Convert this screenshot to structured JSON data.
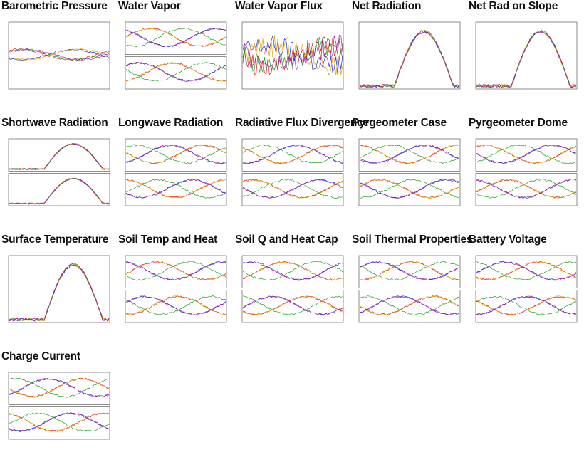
{
  "page": {
    "title": ""
  },
  "thumbnails": [
    {
      "title": "Barometric Pressure",
      "panels": 1
    },
    {
      "title": "Water Vapor",
      "panels": 2
    },
    {
      "title": "Water Vapor Flux",
      "panels": 1
    },
    {
      "title": "Net Radiation",
      "panels": 1
    },
    {
      "title": "Net Rad on Slope",
      "panels": 1
    },
    {
      "title": "Shortwave Radiation",
      "panels": 2
    },
    {
      "title": "Longwave Radiation",
      "panels": 2
    },
    {
      "title": "Radiative Flux Divergence",
      "panels": 2
    },
    {
      "title": "Pyrgeometer Case",
      "panels": 2
    },
    {
      "title": "Pyrgeometer Dome",
      "panels": 2
    },
    {
      "title": "Surface Temperature",
      "panels": 1
    },
    {
      "title": "Soil Temp and Heat",
      "panels": 2
    },
    {
      "title": "Soil Q and Heat Cap",
      "panels": 2
    },
    {
      "title": "Soil Thermal Properties",
      "panels": 2
    },
    {
      "title": "Battery Voltage",
      "panels": 2
    },
    {
      "title": "Charge Current",
      "panels": 2
    }
  ],
  "chart_data": {
    "type": "line",
    "series_colors": [
      "#d62020",
      "#2030d0",
      "#20a020",
      "#e0a000",
      "#a020a0",
      "#a0e040"
    ]
  }
}
